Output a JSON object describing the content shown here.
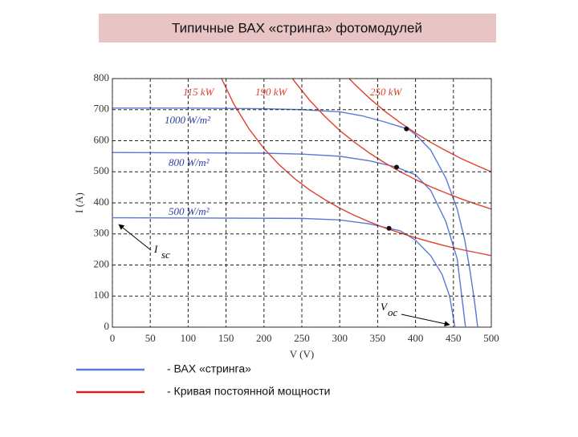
{
  "chart_data": {
    "type": "line",
    "title": "Типичные ВАХ «стринга» фотомодулей",
    "xlabel": "V (V)",
    "ylabel": "I (A)",
    "xlim": [
      0,
      500
    ],
    "ylim": [
      0,
      800
    ],
    "xticks": [
      0,
      50,
      100,
      150,
      200,
      250,
      300,
      350,
      400,
      450,
      500
    ],
    "yticks": [
      0,
      100,
      200,
      300,
      400,
      500,
      600,
      700,
      800
    ],
    "grid": true,
    "iv_curves": [
      {
        "label": "1000 W/m²",
        "color": "#5a78d6",
        "x": [
          0,
          100,
          200,
          250,
          300,
          330,
          360,
          380,
          390,
          400,
          420,
          440,
          455,
          465,
          472,
          478,
          482
        ],
        "values": [
          705,
          705,
          703,
          700,
          693,
          680,
          660,
          645,
          638,
          620,
          570,
          480,
          380,
          280,
          180,
          80,
          0
        ]
      },
      {
        "label": "800 W/m²",
        "color": "#5a78d6",
        "x": [
          0,
          200,
          250,
          300,
          340,
          375,
          400,
          420,
          440,
          455,
          466
        ],
        "values": [
          562,
          560,
          557,
          550,
          535,
          515,
          490,
          440,
          340,
          220,
          0
        ]
      },
      {
        "label": "500 W/m²",
        "color": "#5a78d6",
        "x": [
          0,
          250,
          300,
          340,
          365,
          380,
          400,
          420,
          435,
          445,
          452
        ],
        "values": [
          352,
          350,
          345,
          332,
          318,
          310,
          280,
          230,
          170,
          100,
          0
        ]
      }
    ],
    "power_curves": [
      {
        "label": "115 kW",
        "color": "#e0402e",
        "x": [
          140,
          160,
          180,
          200,
          220,
          240,
          260,
          280,
          300,
          320,
          340,
          360,
          380,
          400,
          420,
          440,
          460,
          480,
          500
        ],
        "values": [
          821,
          719,
          639,
          575,
          523,
          479,
          442,
          411,
          383,
          359,
          338,
          319,
          303,
          288,
          274,
          261,
          250,
          240,
          230
        ]
      },
      {
        "label": "190 kW",
        "color": "#e0402e",
        "x": [
          230,
          240,
          260,
          280,
          300,
          320,
          340,
          360,
          380,
          400,
          420,
          440,
          460,
          480,
          500
        ],
        "values": [
          826,
          792,
          731,
          679,
          633,
          594,
          559,
          528,
          500,
          475,
          452,
          432,
          413,
          396,
          380
        ]
      },
      {
        "label": "250 kW",
        "color": "#e0402e",
        "x": [
          310,
          320,
          340,
          360,
          380,
          400,
          420,
          440,
          460,
          480,
          500
        ],
        "values": [
          806,
          781,
          735,
          694,
          658,
          625,
          595,
          568,
          543,
          521,
          500
        ]
      }
    ],
    "mpp": {
      "color": "#111111",
      "x": [
        388,
        375,
        365
      ],
      "values": [
        638,
        515,
        318
      ]
    },
    "annotations": [
      {
        "text": "I",
        "sub": "sc"
      },
      {
        "text": "V",
        "sub": "oc"
      }
    ],
    "legend": [
      {
        "text": "- ВАХ  «стринга»",
        "color": "#5a78d6"
      },
      {
        "text": "- Кривая постоянной мощности",
        "color": "#d42020"
      }
    ]
  }
}
